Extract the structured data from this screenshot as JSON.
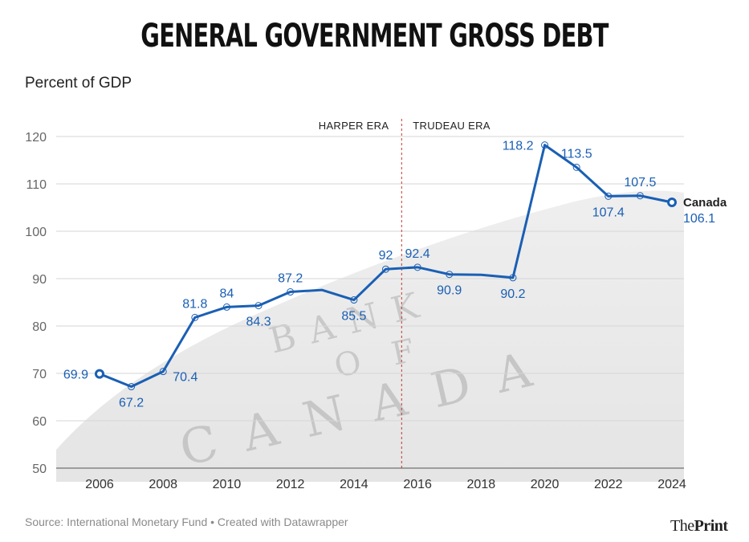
{
  "title": "GENERAL GOVERNMENT GROSS DEBT",
  "subtitle": "Percent of GDP",
  "footer": "Source: International Monetary Fund • Created with Datawrapper",
  "brand": {
    "prefix": "The",
    "name": "Print"
  },
  "background_text": {
    "line1": "BANK",
    "line2": "OF",
    "line3": "CANADA"
  },
  "chart_data": {
    "type": "line",
    "title": "GENERAL GOVERNMENT GROSS DEBT",
    "ylabel": "Percent of GDP",
    "xlim": [
      2005,
      2025
    ],
    "ylim": [
      50,
      120
    ],
    "grid": true,
    "x_ticks": [
      2006,
      2008,
      2010,
      2012,
      2014,
      2016,
      2018,
      2020,
      2022,
      2024
    ],
    "y_ticks": [
      50,
      60,
      70,
      80,
      90,
      100,
      110,
      120
    ],
    "series": [
      {
        "name": "Canada",
        "color": "#1a5fb4",
        "x": [
          2006,
          2007,
          2008,
          2009,
          2010,
          2011,
          2012,
          2013,
          2014,
          2015,
          2016,
          2017,
          2018,
          2019,
          2020,
          2021,
          2022,
          2023,
          2024
        ],
        "y": [
          69.9,
          67.2,
          70.4,
          81.8,
          84.0,
          84.3,
          87.2,
          87.6,
          85.5,
          92.0,
          92.4,
          90.9,
          90.8,
          90.2,
          118.2,
          113.5,
          107.4,
          107.5,
          106.1
        ]
      }
    ],
    "labels": [
      {
        "x": 2006,
        "text": "69.9",
        "pos": "left"
      },
      {
        "x": 2007,
        "text": "67.2",
        "pos": "below"
      },
      {
        "x": 2008,
        "text": "70.4",
        "pos": "right"
      },
      {
        "x": 2009,
        "text": "81.8",
        "pos": "above"
      },
      {
        "x": 2010,
        "text": "84",
        "pos": "above"
      },
      {
        "x": 2011,
        "text": "84.3",
        "pos": "below"
      },
      {
        "x": 2012,
        "text": "87.2",
        "pos": "above"
      },
      {
        "x": 2014,
        "text": "85.5",
        "pos": "below"
      },
      {
        "x": 2015,
        "text": "92",
        "pos": "above"
      },
      {
        "x": 2016,
        "text": "92.4",
        "pos": "above"
      },
      {
        "x": 2017,
        "text": "90.9",
        "pos": "below"
      },
      {
        "x": 2019,
        "text": "90.2",
        "pos": "below"
      },
      {
        "x": 2020,
        "text": "118.2",
        "pos": "left"
      },
      {
        "x": 2021,
        "text": "113.5",
        "pos": "above"
      },
      {
        "x": 2022,
        "text": "107.4",
        "pos": "below"
      },
      {
        "x": 2023,
        "text": "107.5",
        "pos": "above"
      },
      {
        "x": 2024,
        "text": "106.1",
        "pos": "end-below"
      }
    ],
    "end_label": "Canada",
    "annotations": {
      "divider_x": 2015.5,
      "left": "HARPER ERA",
      "right": "TRUDEAU ERA"
    }
  }
}
